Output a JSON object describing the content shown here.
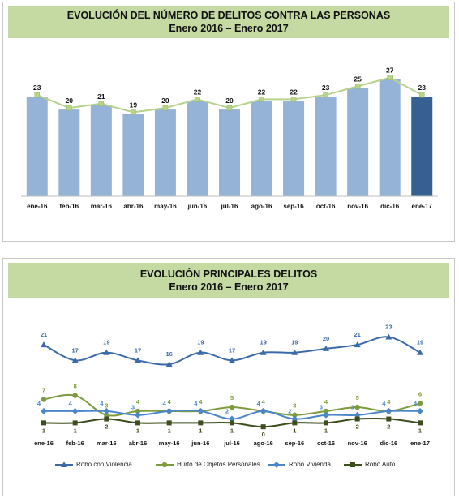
{
  "chart1": {
    "title": "EVOLUCIÓN DEL NÚMERO DE DELITOS CONTRA LAS PERSONAS",
    "subtitle": "Enero 2016 – Enero 2017"
  },
  "chart2": {
    "title": "EVOLUCIÓN PRINCIPALES DELITOS",
    "subtitle": "Enero 2016 – Enero 2017"
  },
  "colors": {
    "bar": "#95b3d7",
    "bar_highlight": "#366092",
    "trend": "#b7d28c",
    "robo_violencia": "#3c6aa8",
    "hurto": "#7d9b3c",
    "robo_vivienda": "#4a86c8",
    "robo_auto": "#3e4d1c",
    "header_bg": "#c5d9a3"
  },
  "chart_data": [
    {
      "type": "bar",
      "title": "EVOLUCIÓN DEL NÚMERO DE DELITOS CONTRA LAS PERSONAS",
      "subtitle": "Enero 2016 – Enero 2017",
      "categories": [
        "ene-16",
        "feb-16",
        "mar-16",
        "abr-16",
        "may-16",
        "jun-16",
        "jul-16",
        "ago-16",
        "sep-16",
        "oct-16",
        "nov-16",
        "dic-16",
        "ene-17"
      ],
      "values": [
        23,
        20,
        21,
        19,
        20,
        22,
        20,
        22,
        22,
        23,
        25,
        27,
        23
      ],
      "overlay": "line",
      "highlight_last": true,
      "data_labels": true,
      "ylim": [
        0,
        29
      ],
      "grid": false
    },
    {
      "type": "line",
      "title": "EVOLUCIÓN PRINCIPALES DELITOS",
      "subtitle": "Enero 2016 – Enero 2017",
      "categories": [
        "ene-16",
        "feb-16",
        "mar-16",
        "abr-16",
        "may-16",
        "jun-16",
        "jul-16",
        "ago-16",
        "sep-16",
        "oct-16",
        "nov-16",
        "dic-16",
        "ene-17"
      ],
      "series": [
        {
          "name": "Robo con Violencia",
          "values": [
            21,
            17,
            19,
            17,
            16,
            19,
            17,
            19,
            19,
            20,
            21,
            23,
            19
          ]
        },
        {
          "name": "Hurto de Objetos Personales",
          "values": [
            7,
            8,
            3,
            4,
            4,
            4,
            5,
            4,
            3,
            4,
            5,
            4,
            6
          ]
        },
        {
          "name": "Robo Vivienda",
          "values": [
            4,
            4,
            4,
            3,
            4,
            4,
            2,
            4,
            2,
            3,
            3,
            4,
            4
          ]
        },
        {
          "name": "Robo Auto",
          "values": [
            1,
            1,
            2,
            1,
            1,
            1,
            1,
            0,
            1,
            1,
            2,
            2,
            1
          ]
        }
      ],
      "legend": "bottom",
      "data_labels": true,
      "ylim": [
        -1,
        26
      ],
      "grid": false
    }
  ]
}
